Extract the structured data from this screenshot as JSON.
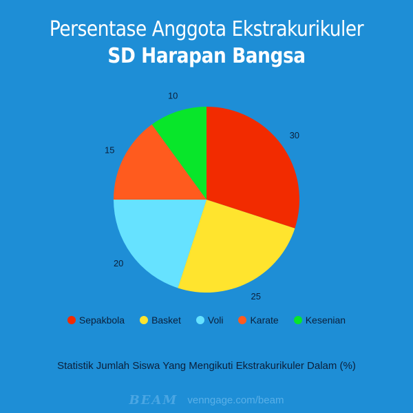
{
  "header": {
    "title": "Persentase Anggota Ekstrakurikuler",
    "subtitle": "SD Harapan Bangsa"
  },
  "chart_data": {
    "type": "pie",
    "categories": [
      "Sepakbola",
      "Basket",
      "Voli",
      "Karate",
      "Kesenian"
    ],
    "values": [
      30,
      25,
      20,
      15,
      10
    ],
    "colors": [
      "#F22B00",
      "#FFE42E",
      "#66E2FF",
      "#FF5B1E",
      "#08E62A"
    ],
    "labels": [
      "30",
      "25",
      "20",
      "15",
      "10"
    ],
    "legend_position": "bottom",
    "start_angle": "12 o'clock, clockwise"
  },
  "caption": "Statistik Jumlah Siswa Yang Mengikuti Ekstrakurikuler Dalam (%)",
  "footer": {
    "brand": "BEAM",
    "url": "venngage.com/beam"
  }
}
